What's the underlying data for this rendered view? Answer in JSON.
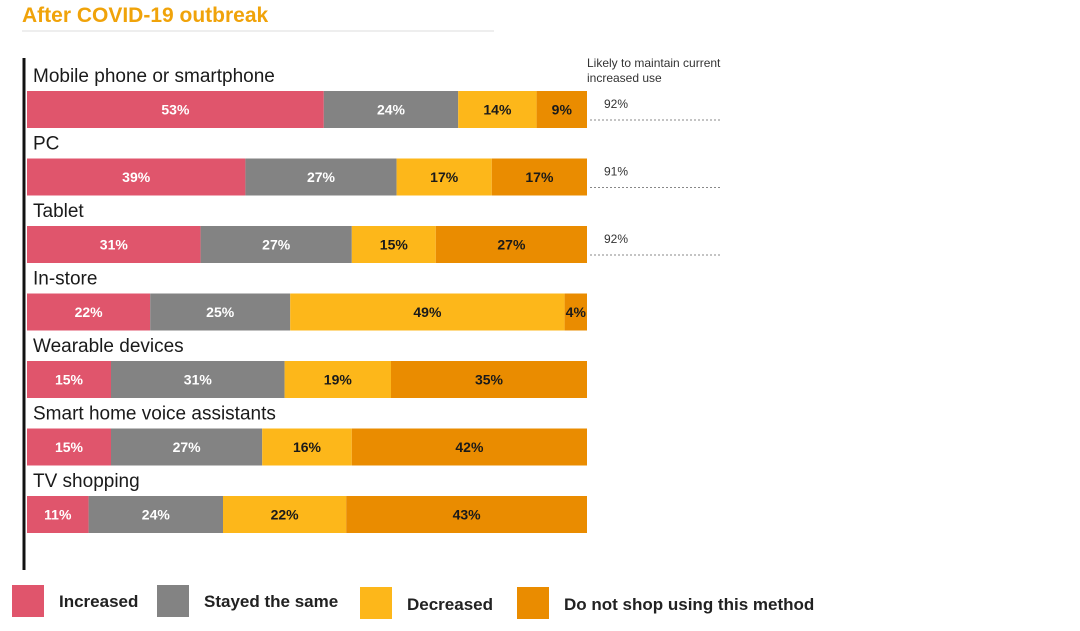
{
  "chart_data": {
    "type": "bar",
    "stacked": true,
    "orientation": "horizontal",
    "title": "After COVID-19 outbreak",
    "categories": [
      "Mobile phone or smartphone",
      "PC",
      "Tablet",
      "In-store",
      "Wearable devices",
      "Smart home voice assistants",
      "TV shopping"
    ],
    "series": [
      {
        "name": "Increased",
        "color": "#e0556c",
        "label_color": "#ffffff",
        "values": [
          53,
          39,
          31,
          22,
          15,
          15,
          11
        ]
      },
      {
        "name": "Stayed the same",
        "color": "#838383",
        "label_color": "#ffffff",
        "values": [
          24,
          27,
          27,
          25,
          31,
          27,
          24
        ]
      },
      {
        "name": "Decreased",
        "color": "#fdb71a",
        "label_color": "#1a1a1a",
        "values": [
          14,
          17,
          15,
          49,
          19,
          16,
          22
        ]
      },
      {
        "name": "Do not shop using this method",
        "color": "#ea8c00",
        "label_color": "#1a1a1a",
        "values": [
          9,
          17,
          27,
          4,
          35,
          42,
          43
        ]
      }
    ],
    "value_suffix": "%",
    "side_note": {
      "heading_lines": [
        "Likely to maintain current",
        "increased use"
      ],
      "values": [
        "92%",
        "91%",
        "92%"
      ]
    },
    "legend_position": "bottom",
    "title_color": "#f0a30a"
  }
}
